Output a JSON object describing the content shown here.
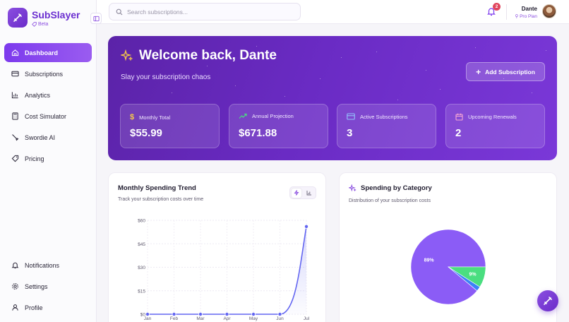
{
  "brand": {
    "name": "SubSlayer",
    "badge": "Beta"
  },
  "nav": {
    "items": [
      {
        "label": "Dashboard",
        "icon": "home-icon",
        "active": true
      },
      {
        "label": "Subscriptions",
        "icon": "card-icon"
      },
      {
        "label": "Analytics",
        "icon": "bar-chart-icon"
      },
      {
        "label": "Cost Simulator",
        "icon": "calculator-icon"
      },
      {
        "label": "Swordie AI",
        "icon": "sword-icon"
      },
      {
        "label": "Pricing",
        "icon": "tag-icon"
      }
    ],
    "bottom": [
      {
        "label": "Notifications",
        "icon": "bell-icon"
      },
      {
        "label": "Settings",
        "icon": "gear-icon"
      },
      {
        "label": "Profile",
        "icon": "user-icon"
      }
    ]
  },
  "header": {
    "search_placeholder": "Search subscriptions...",
    "notification_count": "2",
    "user_name": "Dante",
    "user_plan": "Pro Plan"
  },
  "hero": {
    "title": "Welcome back, Dante",
    "subtitle": "Slay your subscription chaos",
    "add_button": "Add Subscription",
    "stats": [
      {
        "label": "Monthly Total",
        "value": "$55.99",
        "icon": "dollar-icon"
      },
      {
        "label": "Annual Projection",
        "value": "$671.88",
        "icon": "trend-up-icon"
      },
      {
        "label": "Active Subscriptions",
        "value": "3",
        "icon": "card-icon"
      },
      {
        "label": "Upcoming Renewals",
        "value": "2",
        "icon": "calendar-icon"
      }
    ]
  },
  "trend_card": {
    "title": "Monthly Spending Trend",
    "subtitle": "Track your subscription costs over time"
  },
  "category_card": {
    "title": "Spending by Category",
    "subtitle": "Distribution of your subscription costs"
  },
  "colors": {
    "accent": "#7c3aed",
    "line": "#6366f1",
    "pie_main": "#8b5cf6",
    "pie_green": "#4ade80",
    "pie_blue": "#3b82f6"
  },
  "chart_data": [
    {
      "type": "line",
      "categories": [
        "Jan",
        "Feb",
        "Mar",
        "Apr",
        "May",
        "Jun",
        "Jul"
      ],
      "values": [
        0,
        0,
        0,
        0,
        0,
        0,
        56
      ],
      "y_ticks": [
        "$0",
        "$15",
        "$30",
        "$45",
        "$60"
      ],
      "ylim": [
        0,
        60
      ],
      "grid": true
    },
    {
      "type": "pie",
      "slices": [
        {
          "label": "89%",
          "value": 89
        },
        {
          "label": "9%",
          "value": 9
        },
        {
          "label": "",
          "value": 2
        }
      ]
    }
  ]
}
